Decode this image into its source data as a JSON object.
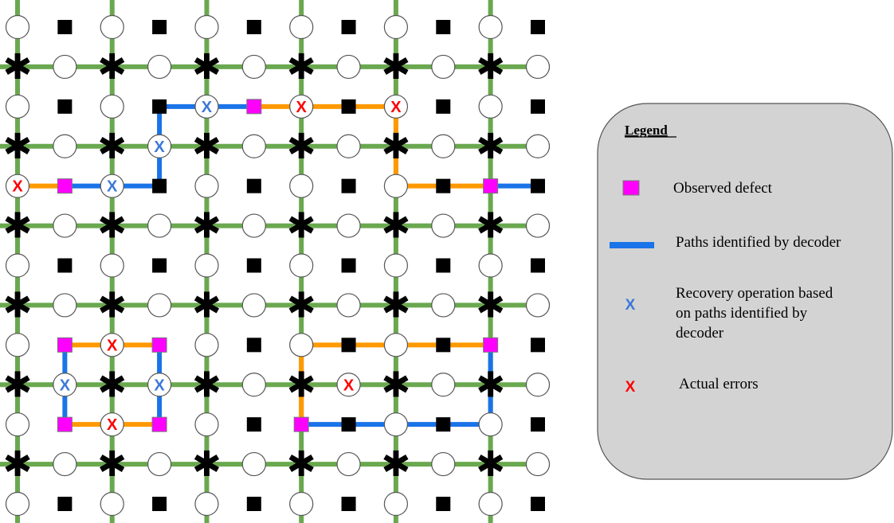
{
  "legend": {
    "title": "Legend",
    "items": [
      {
        "kind": "defect",
        "label_lines": [
          "Observed defect"
        ]
      },
      {
        "kind": "path",
        "label_lines": [
          "Paths identified by decoder"
        ]
      },
      {
        "kind": "recovery",
        "label_lines": [
          "Recovery operation based",
          "on paths identified by",
          "decoder"
        ]
      },
      {
        "kind": "error",
        "label_lines": [
          "Actual errors"
        ]
      }
    ]
  },
  "glyphs": {
    "cross": "X",
    "star": "✱"
  },
  "colors": {
    "lattice": "#6aa84f",
    "decoder_path": "#1a73e8",
    "error_path": "#ff9900",
    "defect": "#ff00ff",
    "stabilizer": "#000000",
    "recovery_x": "#3c78d8",
    "error_x": "#ff0000",
    "legend_bg": "#d3d3d3"
  },
  "lattice": {
    "columns": 12,
    "rows": 13
  },
  "defects": [
    [
      5,
      2
    ],
    [
      1,
      4
    ],
    [
      10,
      4
    ],
    [
      1,
      8
    ],
    [
      3,
      8
    ],
    [
      1,
      10
    ],
    [
      3,
      10
    ],
    [
      6,
      10
    ],
    [
      10,
      8
    ]
  ],
  "error_marks": [
    [
      6,
      2
    ],
    [
      8,
      2
    ],
    [
      8,
      3
    ],
    [
      0,
      4
    ],
    [
      9,
      4
    ],
    [
      2,
      8
    ],
    [
      7,
      8
    ],
    [
      9,
      8
    ],
    [
      7,
      9
    ],
    [
      2,
      10
    ]
  ],
  "recovery_marks": [
    [
      4,
      2
    ],
    [
      3,
      3
    ],
    [
      2,
      4
    ],
    [
      11,
      4
    ],
    [
      1,
      9
    ],
    [
      3,
      9
    ],
    [
      10,
      9
    ],
    [
      7,
      10
    ],
    [
      9,
      10
    ]
  ],
  "decoder_paths": [
    [
      [
        3,
        4
      ],
      [
        3,
        2
      ],
      [
        5,
        2
      ]
    ],
    [
      [
        1,
        4
      ],
      [
        3,
        4
      ]
    ],
    [
      [
        10,
        4
      ],
      [
        11,
        4
      ]
    ],
    [
      [
        1,
        8
      ],
      [
        1,
        10
      ]
    ],
    [
      [
        3,
        8
      ],
      [
        3,
        10
      ]
    ],
    [
      [
        6,
        10
      ],
      [
        10,
        10
      ],
      [
        10,
        8
      ]
    ]
  ],
  "error_paths": [
    [
      [
        5,
        2
      ],
      [
        8,
        2
      ],
      [
        8,
        4
      ],
      [
        10,
        4
      ]
    ],
    [
      [
        0,
        4
      ],
      [
        1,
        4
      ]
    ],
    [
      [
        1,
        8
      ],
      [
        3,
        8
      ]
    ],
    [
      [
        1,
        10
      ],
      [
        3,
        10
      ]
    ],
    [
      [
        6,
        10
      ],
      [
        6,
        8
      ],
      [
        10,
        8
      ]
    ]
  ]
}
